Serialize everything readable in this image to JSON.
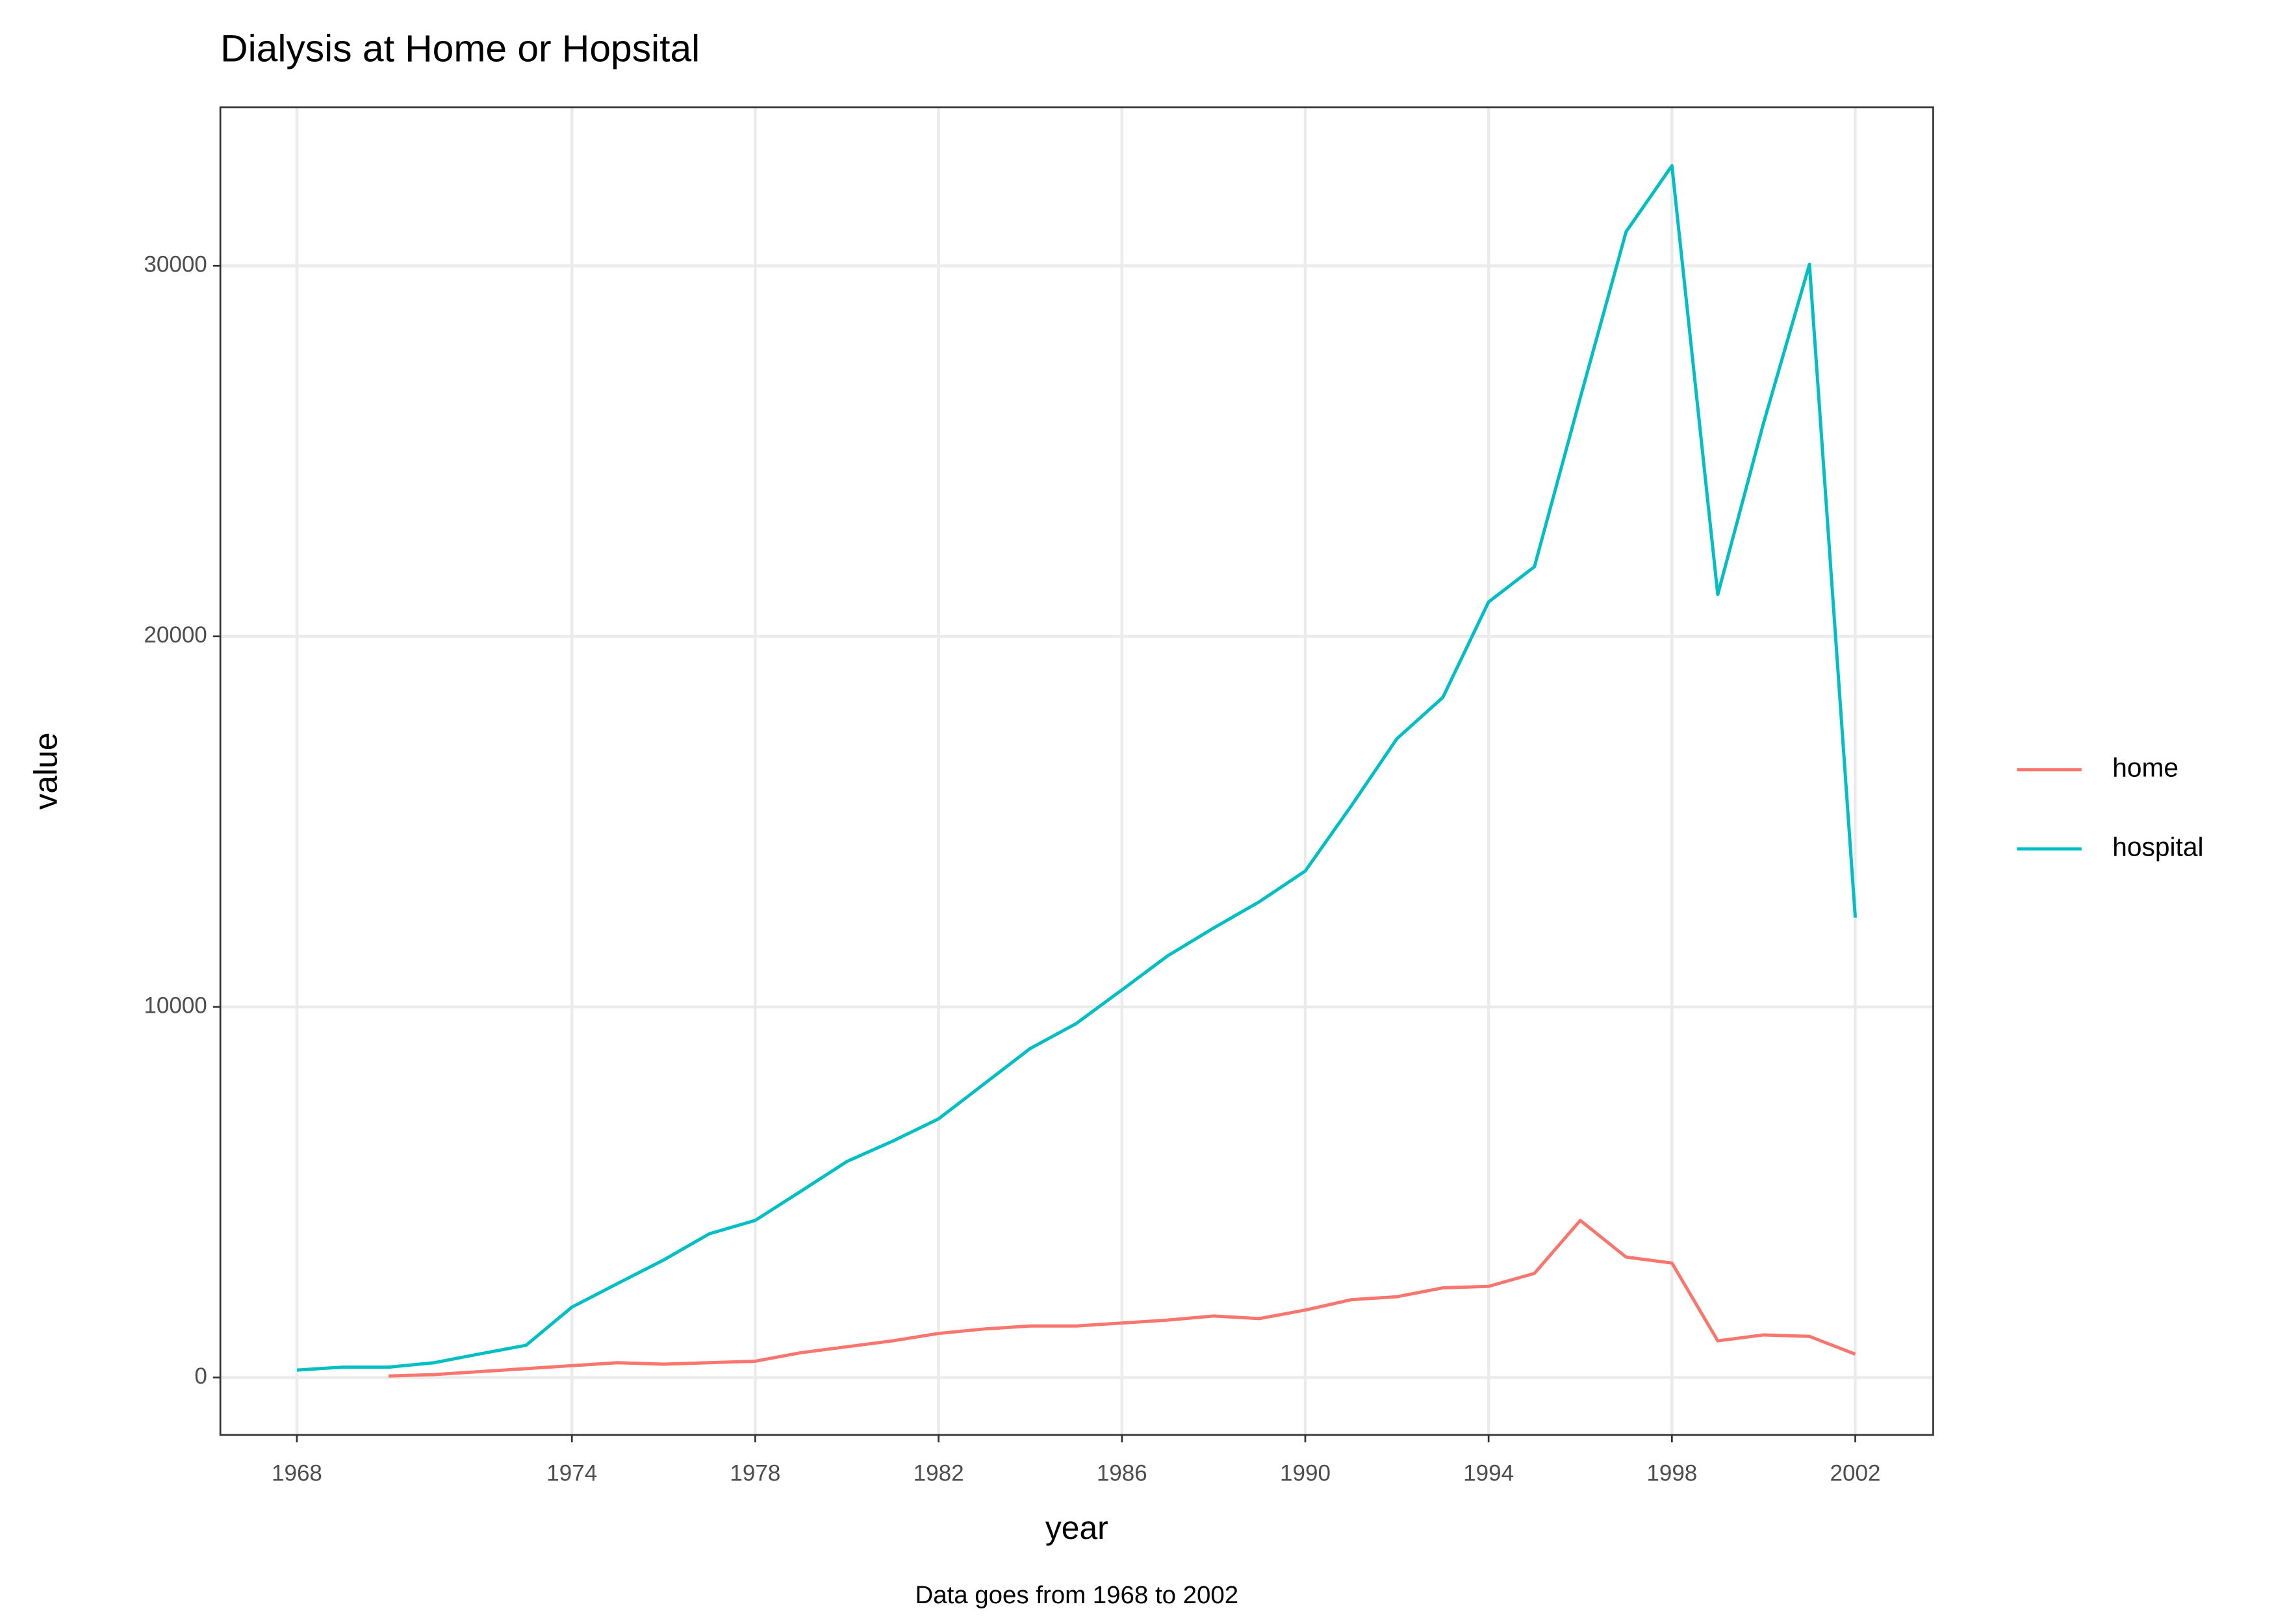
{
  "chart_data": {
    "type": "line",
    "title": "Dialysis at Home or Hopsital",
    "caption": "Data goes from 1968 to 2002",
    "x_label": "year",
    "y_label": "value",
    "x": [
      1968,
      1969,
      1970,
      1971,
      1972,
      1973,
      1974,
      1975,
      1976,
      1977,
      1978,
      1979,
      1980,
      1981,
      1982,
      1983,
      1984,
      1985,
      1986,
      1987,
      1988,
      1989,
      1990,
      1991,
      1992,
      1993,
      1994,
      1995,
      1996,
      1997,
      1998,
      1999,
      2000,
      2001,
      2002
    ],
    "series": [
      {
        "name": "home",
        "color": "#f8766d",
        "values": [
          null,
          null,
          40,
          80,
          160,
          240,
          320,
          400,
          360,
          400,
          440,
          670,
          830,
          990,
          1190,
          1310,
          1390,
          1390,
          1470,
          1550,
          1660,
          1590,
          1820,
          2100,
          2180,
          2420,
          2460,
          2810,
          4240,
          3250,
          3090,
          990,
          1150,
          1110,
          630
        ]
      },
      {
        "name": "hospital",
        "color": "#00bfc4",
        "values": [
          200,
          280,
          280,
          400,
          640,
          870,
          1900,
          2540,
          3170,
          3880,
          4240,
          5030,
          5830,
          6380,
          6980,
          7930,
          8880,
          9550,
          10460,
          11380,
          12130,
          12840,
          13670,
          15420,
          17240,
          18350,
          20930,
          21880,
          26440,
          30920,
          32700,
          21130,
          25760,
          30040,
          12410
        ]
      }
    ],
    "xlim": [
      1966.33,
      2003.7
    ],
    "xticks": [
      1968,
      1974,
      1978,
      1982,
      1986,
      1990,
      1994,
      1998,
      2002
    ],
    "ylim": [
      -1550,
      34280
    ],
    "yticks": [
      0,
      10000,
      20000,
      30000
    ],
    "grid": true,
    "legend_position": "right"
  }
}
